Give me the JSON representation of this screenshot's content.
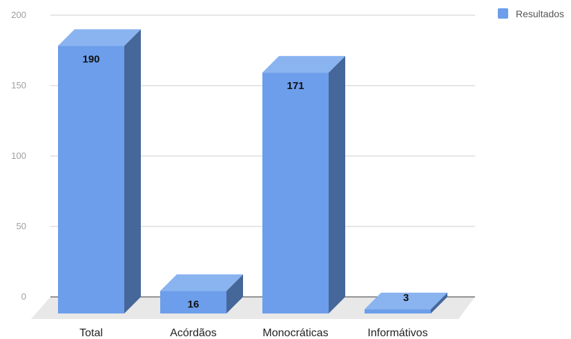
{
  "chart_data": {
    "type": "bar",
    "categories": [
      "Total",
      "Acórdãos",
      "Monocráticas",
      "Informátivos"
    ],
    "series": [
      {
        "name": "Resultados",
        "values": [
          190,
          16,
          171,
          3
        ],
        "color": "#6d9eeb"
      }
    ],
    "data_labels": [
      "190",
      "16",
      "171",
      "3"
    ],
    "y_ticks": [
      0,
      50,
      100,
      150,
      200
    ],
    "ylim": [
      0,
      200
    ],
    "grid": true,
    "legend_position": "top-right",
    "style": "3d",
    "colors": {
      "bar_front": "#6d9eeb",
      "bar_top": "#8ab4f0",
      "bar_side": "#46679a",
      "floor": "#e8e8e8",
      "gridline": "#cccccc",
      "baseline": "#333333"
    }
  }
}
